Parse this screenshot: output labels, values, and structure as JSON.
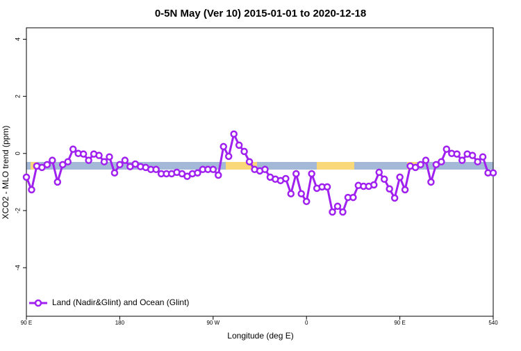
{
  "chart_data": {
    "type": "line",
    "title": "0-5N May (Ver 10)   2015-01-01 to 2020-12-18",
    "x_label": "Longitude (deg E)",
    "y_label": "XCO2 - MLO trend (ppm)",
    "x": [
      90,
      95,
      100,
      105,
      110,
      115,
      120,
      125,
      130,
      135,
      140,
      145,
      150,
      155,
      160,
      165,
      170,
      175,
      180,
      185,
      190,
      195,
      200,
      205,
      210,
      215,
      220,
      225,
      230,
      235,
      240,
      245,
      250,
      255,
      260,
      265,
      270,
      275,
      280,
      285,
      290,
      295,
      300,
      305,
      310,
      315,
      320,
      325,
      330,
      335,
      340,
      345,
      350,
      355,
      360,
      365,
      370,
      375,
      380,
      385,
      390,
      395,
      400,
      405,
      410,
      415,
      420,
      425,
      430,
      435,
      440,
      445,
      450,
      455,
      460,
      465,
      470,
      475,
      480,
      485,
      490,
      495,
      500,
      505,
      510,
      515,
      520,
      525,
      530,
      535,
      540
    ],
    "series": [
      {
        "name": "Land (Nadir&Glint) and Ocean (Glint)",
        "color": "#a020f0",
        "values": [
          -0.83,
          -1.27,
          -0.44,
          -0.49,
          -0.39,
          -0.24,
          -1.0,
          -0.39,
          -0.29,
          0.15,
          0,
          -0.02,
          -0.24,
          -0.02,
          -0.07,
          -0.29,
          -0.12,
          -0.68,
          -0.39,
          -0.24,
          -0.46,
          -0.37,
          -0.46,
          -0.49,
          -0.56,
          -0.56,
          -0.71,
          -0.71,
          -0.71,
          -0.66,
          -0.71,
          -0.8,
          -0.71,
          -0.68,
          -0.56,
          -0.56,
          -0.56,
          -0.76,
          0.24,
          -0.1,
          0.68,
          0.29,
          0.07,
          -0.29,
          -0.56,
          -0.61,
          -0.56,
          -0.83,
          -0.9,
          -0.95,
          -0.88,
          -1.41,
          -0.71,
          -1.41,
          -1.68,
          -0.71,
          -1.22,
          -1.17,
          -1.17,
          -2.05,
          -1.85,
          -2.05,
          -1.54,
          -1.54,
          -1.12,
          -1.15,
          -1.15,
          -1.1,
          -0.66,
          -0.9,
          -1.24,
          -1.56,
          -0.83,
          -1.27,
          -0.44,
          -0.49,
          -0.39,
          -0.24,
          -1.0,
          -0.39,
          -0.29,
          0.15,
          0,
          -0.02,
          -0.24,
          -0.02,
          -0.07,
          -0.29,
          -0.12,
          -0.68,
          -0.68
        ]
      }
    ],
    "xlim": [
      90,
      540
    ],
    "xticks": [
      {
        "value": 90,
        "label": "90 E"
      },
      180,
      {
        "value": 270,
        "label": "90 W"
      },
      0,
      {
        "value": 450,
        "label": "90 E"
      },
      540
    ],
    "ylim": [
      -5.7,
      4.4
    ],
    "yticks": [
      -4,
      -2,
      0,
      2,
      4
    ],
    "legend": "bottom-left"
  }
}
